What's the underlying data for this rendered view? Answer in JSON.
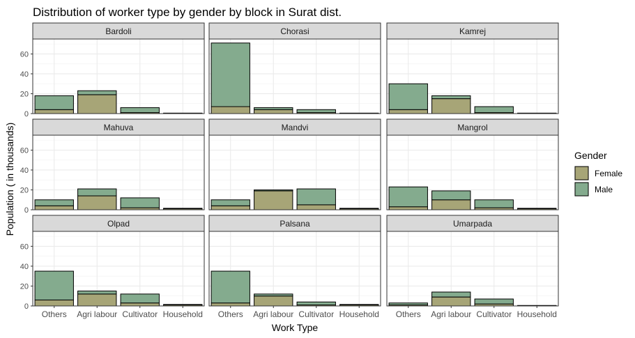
{
  "chart_data": {
    "type": "bar",
    "stacked": true,
    "faceted": true,
    "title": "Distribution of worker type by gender by block in Surat dist.",
    "xlabel": "Work Type",
    "ylabel": "Population ( in thousands)",
    "categories": [
      "Others",
      "Agri labour",
      "Cultivator",
      "Household"
    ],
    "ylim": [
      0,
      75
    ],
    "yticks": [
      0,
      20,
      40,
      60
    ],
    "grid": true,
    "legend": {
      "title": "Gender",
      "position": "right",
      "entries": [
        {
          "name": "Female",
          "color": "#a7a577"
        },
        {
          "name": "Male",
          "color": "#84ab8e"
        }
      ]
    },
    "panels": [
      {
        "name": "Bardoli",
        "female": [
          4,
          19,
          1,
          0.3
        ],
        "male": [
          14,
          4,
          5,
          0.2
        ]
      },
      {
        "name": "Chorasi",
        "female": [
          7,
          4,
          1,
          0.3
        ],
        "male": [
          64,
          2,
          3,
          0.2
        ]
      },
      {
        "name": "Kamrej",
        "female": [
          4,
          15,
          1,
          0.3
        ],
        "male": [
          26,
          3,
          6,
          0.2
        ]
      },
      {
        "name": "Mahuva",
        "female": [
          4,
          14,
          2,
          1
        ],
        "male": [
          6,
          7,
          10,
          0.5
        ]
      },
      {
        "name": "Mandvi",
        "female": [
          4,
          19,
          5,
          1
        ],
        "male": [
          6,
          1,
          16,
          0.5
        ]
      },
      {
        "name": "Mangrol",
        "female": [
          3,
          10,
          2,
          1
        ],
        "male": [
          20,
          9,
          8,
          0.5
        ]
      },
      {
        "name": "Olpad",
        "female": [
          6,
          12,
          3,
          1
        ],
        "male": [
          29,
          3,
          9,
          0.5
        ]
      },
      {
        "name": "Palsana",
        "female": [
          3,
          10,
          1,
          1
        ],
        "male": [
          32,
          2,
          3,
          0.5
        ]
      },
      {
        "name": "Umarpada",
        "female": [
          1,
          9,
          2,
          0.3
        ],
        "male": [
          2,
          5,
          5,
          0.2
        ]
      }
    ]
  }
}
